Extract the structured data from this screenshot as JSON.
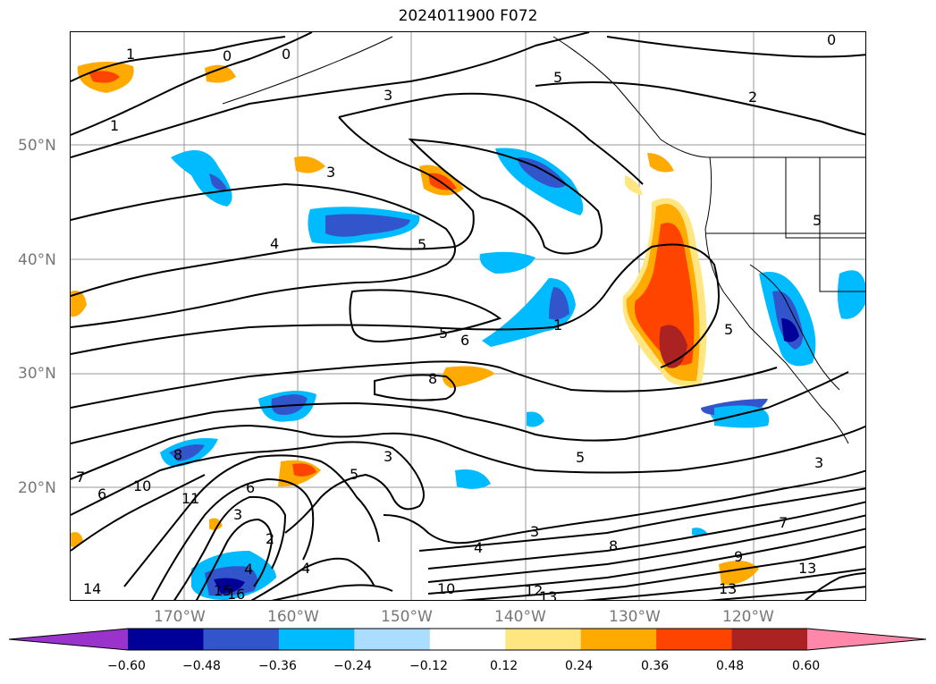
{
  "title": "2024011900 F072",
  "lat_labels": [
    "50°N",
    "40°N",
    "30°N",
    "20°N"
  ],
  "lon_labels": [
    "170°W",
    "160°W",
    "150°W",
    "140°W",
    "130°W",
    "120°W"
  ],
  "colorbar": {
    "ticks": [
      "−0.60",
      "−0.48",
      "−0.36",
      "−0.24",
      "−0.12",
      "0.12",
      "0.24",
      "0.36",
      "0.48",
      "0.60"
    ],
    "colors": [
      "#9933cc",
      "#000099",
      "#3355cc",
      "#00bbff",
      "#aaddff",
      "#ffffff",
      "#ffe680",
      "#ffaa00",
      "#ff4400",
      "#aa2222",
      "#ff88aa"
    ]
  },
  "contour_labels": [
    "1",
    "0",
    "0",
    "0",
    "3",
    "5",
    "2",
    "1",
    "3",
    "4",
    "5",
    "5",
    "6",
    "1",
    "5",
    "8",
    "7",
    "6",
    "10",
    "11",
    "8",
    "3",
    "5",
    "3",
    "6",
    "2",
    "4",
    "4",
    "5",
    "3",
    "4",
    "3",
    "8",
    "7",
    "9",
    "13",
    "13",
    "10",
    "12",
    "13",
    "14",
    "15",
    "16",
    "5"
  ]
}
